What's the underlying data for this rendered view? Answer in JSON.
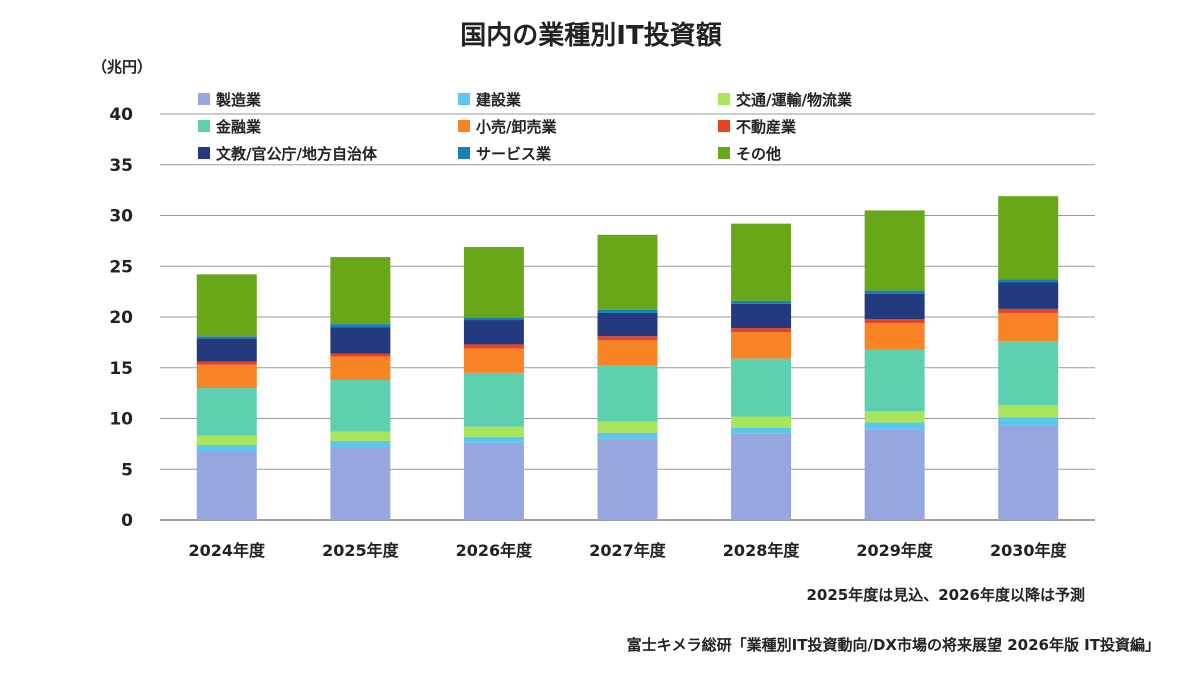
{
  "chart_data": {
    "type": "bar",
    "stacked": true,
    "title": "国内の業種別IT投資額",
    "ylabel": "（兆円）",
    "xlabel": "",
    "ylim": [
      0,
      40
    ],
    "yticks": [
      0,
      5,
      10,
      15,
      20,
      25,
      30,
      35,
      40
    ],
    "grid": true,
    "legend_position": "top",
    "categories": [
      "2024年度",
      "2025年度",
      "2026年度",
      "2027年度",
      "2028年度",
      "2029年度",
      "2030年度"
    ],
    "series": [
      {
        "name": "製造業",
        "color": "#96A7DF",
        "values": [
          6.8,
          7.2,
          7.6,
          8.0,
          8.5,
          8.9,
          9.3
        ]
      },
      {
        "name": "建設業",
        "color": "#5BC6EE",
        "values": [
          0.6,
          0.6,
          0.6,
          0.6,
          0.6,
          0.7,
          0.8
        ]
      },
      {
        "name": "交通/運輸/物流業",
        "color": "#A8E55A",
        "values": [
          0.9,
          0.9,
          1.0,
          1.1,
          1.1,
          1.1,
          1.2
        ]
      },
      {
        "name": "金融業",
        "color": "#5ED0B0",
        "values": [
          4.7,
          5.1,
          5.3,
          5.5,
          5.7,
          6.1,
          6.3
        ]
      },
      {
        "name": "小売/卸売業",
        "color": "#F98426",
        "values": [
          2.3,
          2.3,
          2.4,
          2.5,
          2.6,
          2.6,
          2.8
        ]
      },
      {
        "name": "不動産業",
        "color": "#E54322",
        "values": [
          0.3,
          0.3,
          0.4,
          0.4,
          0.4,
          0.4,
          0.4
        ]
      },
      {
        "name": "文教/官公庁/地方自治体",
        "color": "#233A7E",
        "values": [
          2.3,
          2.6,
          2.4,
          2.3,
          2.4,
          2.5,
          2.6
        ]
      },
      {
        "name": "サービス業",
        "color": "#1381B3",
        "values": [
          0.2,
          0.3,
          0.2,
          0.3,
          0.3,
          0.3,
          0.3
        ]
      },
      {
        "name": "その他",
        "color": "#68A818",
        "values": [
          6.1,
          6.6,
          7.0,
          7.4,
          7.6,
          7.9,
          8.2
        ]
      }
    ]
  },
  "notes": {
    "forecast_note": "2025年度は見込、2026年度以降は予測",
    "source": "富士キメラ総研「業種別IT投資動向/DX市場の将来展望 2026年版 IT投資編」"
  }
}
